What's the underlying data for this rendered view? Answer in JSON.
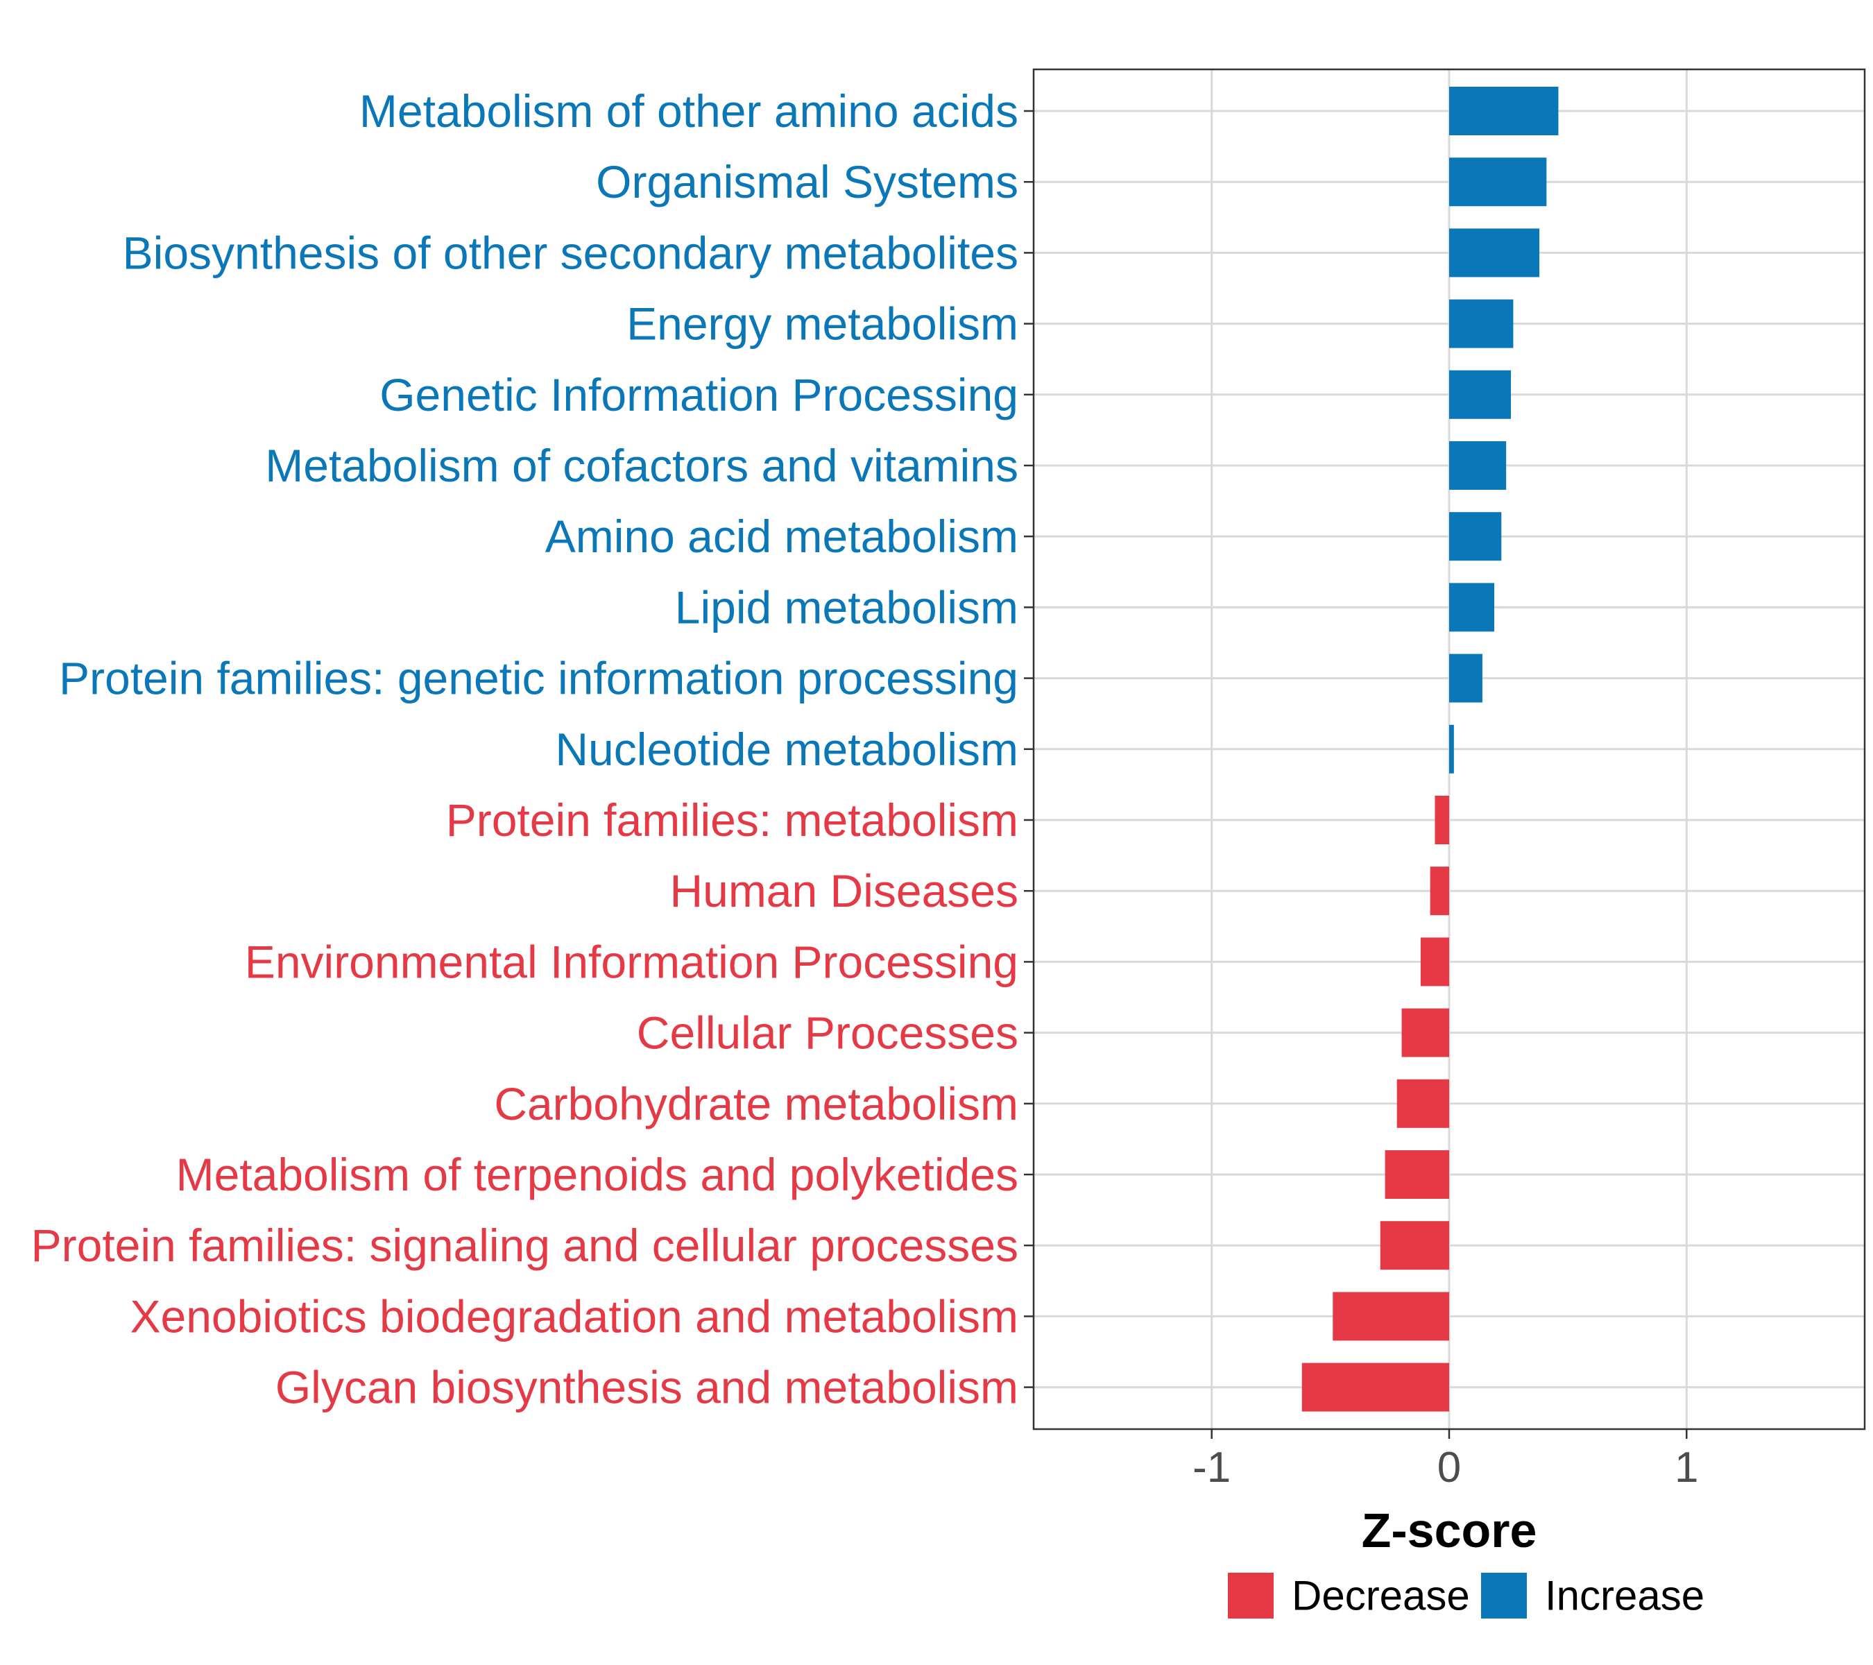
{
  "chart_data": {
    "type": "bar",
    "orientation": "horizontal",
    "title": "",
    "xlabel": "Z-score",
    "ylabel": "",
    "xlim": [
      -1.75,
      1.75
    ],
    "xticks": [
      -1,
      0,
      1
    ],
    "xtick_labels": [
      "-1",
      "0",
      "1"
    ],
    "grid": true,
    "legend_position": "bottom",
    "colors": {
      "Decrease": "#e63946",
      "Increase": "#0a77b8"
    },
    "categories": [
      "Metabolism of other amino acids",
      "Organismal Systems",
      "Biosynthesis of other secondary metabolites",
      "Energy metabolism",
      "Genetic Information Processing",
      "Metabolism of cofactors and vitamins",
      "Amino acid metabolism",
      "Lipid metabolism",
      "Protein families: genetic information processing",
      "Nucleotide metabolism",
      "Protein families: metabolism",
      "Human Diseases",
      "Environmental Information Processing",
      "Cellular Processes",
      "Carbohydrate metabolism",
      "Metabolism of terpenoids and polyketides",
      "Protein families: signaling and cellular processes",
      "Xenobiotics biodegradation and metabolism",
      "Glycan biosynthesis and metabolism"
    ],
    "values": [
      0.46,
      0.41,
      0.38,
      0.27,
      0.26,
      0.24,
      0.22,
      0.19,
      0.14,
      0.02,
      -0.06,
      -0.08,
      -0.12,
      -0.2,
      -0.22,
      -0.27,
      -0.29,
      -0.49,
      -0.62
    ],
    "groups": [
      "Increase",
      "Increase",
      "Increase",
      "Increase",
      "Increase",
      "Increase",
      "Increase",
      "Increase",
      "Increase",
      "Increase",
      "Decrease",
      "Decrease",
      "Decrease",
      "Decrease",
      "Decrease",
      "Decrease",
      "Decrease",
      "Decrease",
      "Decrease"
    ],
    "legend": [
      "Decrease",
      "Increase"
    ]
  }
}
